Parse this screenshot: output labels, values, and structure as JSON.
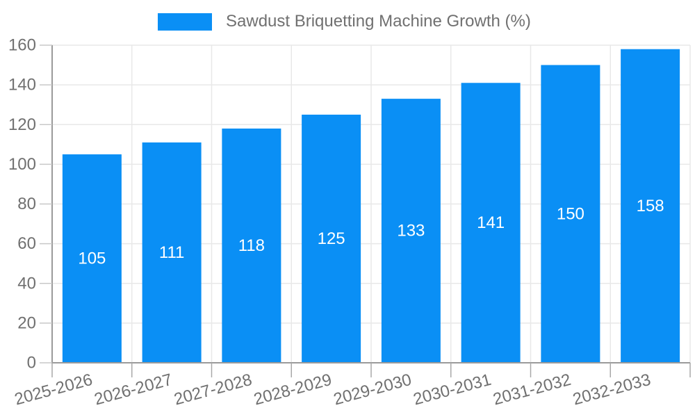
{
  "chart_data": {
    "type": "bar",
    "title": "Sawdust Briquetting Machine Growth (%)",
    "categories": [
      "2025-2026",
      "2026-2027",
      "2027-2028",
      "2028-2029",
      "2029-2030",
      "2030-2031",
      "2031-2032",
      "2032-2033"
    ],
    "series": [
      {
        "name": "Sawdust Briquetting Machine Growth (%)",
        "values": [
          105,
          111,
          118,
          125,
          133,
          141,
          150,
          158
        ]
      }
    ],
    "xlabel": "",
    "ylabel": "",
    "ylim": [
      0,
      160
    ],
    "ytick_step": 20,
    "yticks": [
      0,
      20,
      40,
      60,
      80,
      100,
      120,
      140,
      160
    ],
    "grid": true,
    "legend_position": "top",
    "x_label_rotation": -15,
    "bar_color": "#0a8ff5",
    "value_label_color": "#ffffff",
    "axis_text_color": "#707070",
    "axis_line_color": "#9a9a9a",
    "grid_color": "#e8e8e8",
    "y_tick_color": "#c8c8c8",
    "x_tick_color": "#a8a8a8",
    "background_color": "#ffffff"
  }
}
